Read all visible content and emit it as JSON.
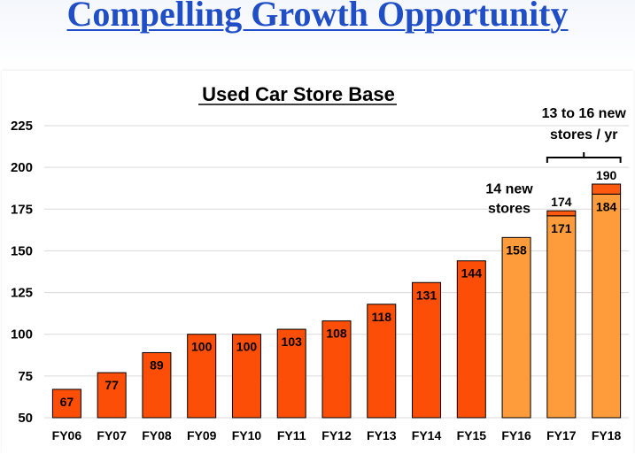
{
  "slide": {
    "title": "Compelling Growth Opportunity"
  },
  "chart_data": {
    "type": "bar",
    "title": "Used Car Store Base",
    "xlabel": "",
    "ylabel": "",
    "ylim": [
      50,
      225
    ],
    "yticks": [
      50,
      75,
      100,
      125,
      150,
      175,
      200,
      225
    ],
    "grid": true,
    "legend": "none",
    "categories": [
      "FY06",
      "FY07",
      "FY08",
      "FY09",
      "FY10",
      "FY11",
      "FY12",
      "FY13",
      "FY14",
      "FY15",
      "FY16",
      "FY17",
      "FY18"
    ],
    "values": [
      67,
      77,
      89,
      100,
      100,
      103,
      108,
      118,
      131,
      144,
      158,
      171,
      184
    ],
    "value_labels": [
      "67",
      "77",
      "89",
      "100",
      "100",
      "103",
      "108",
      "118",
      "131",
      "144",
      "158",
      "171",
      "184"
    ],
    "stack_tops": [
      null,
      null,
      null,
      null,
      null,
      null,
      null,
      null,
      null,
      null,
      null,
      174,
      190
    ],
    "stack_top_labels": [
      "",
      "",
      "",
      "",
      "",
      "",
      "",
      "",
      "",
      "",
      "",
      "174",
      "190"
    ],
    "colors": {
      "actual": "#fd4e08",
      "projected": "#fe9b3a",
      "range_cap": "#fd5a10",
      "outline": "#000000",
      "grid": "#d9d9d9"
    },
    "projected_categories": [
      "FY16",
      "FY17",
      "FY18"
    ],
    "annotations": [
      {
        "text_lines": [
          "14 new",
          "stores"
        ],
        "target": "FY16"
      },
      {
        "text_lines": [
          "13 to 16 new",
          "stores / yr"
        ],
        "target_range": [
          "FY17",
          "FY18"
        ]
      }
    ]
  }
}
